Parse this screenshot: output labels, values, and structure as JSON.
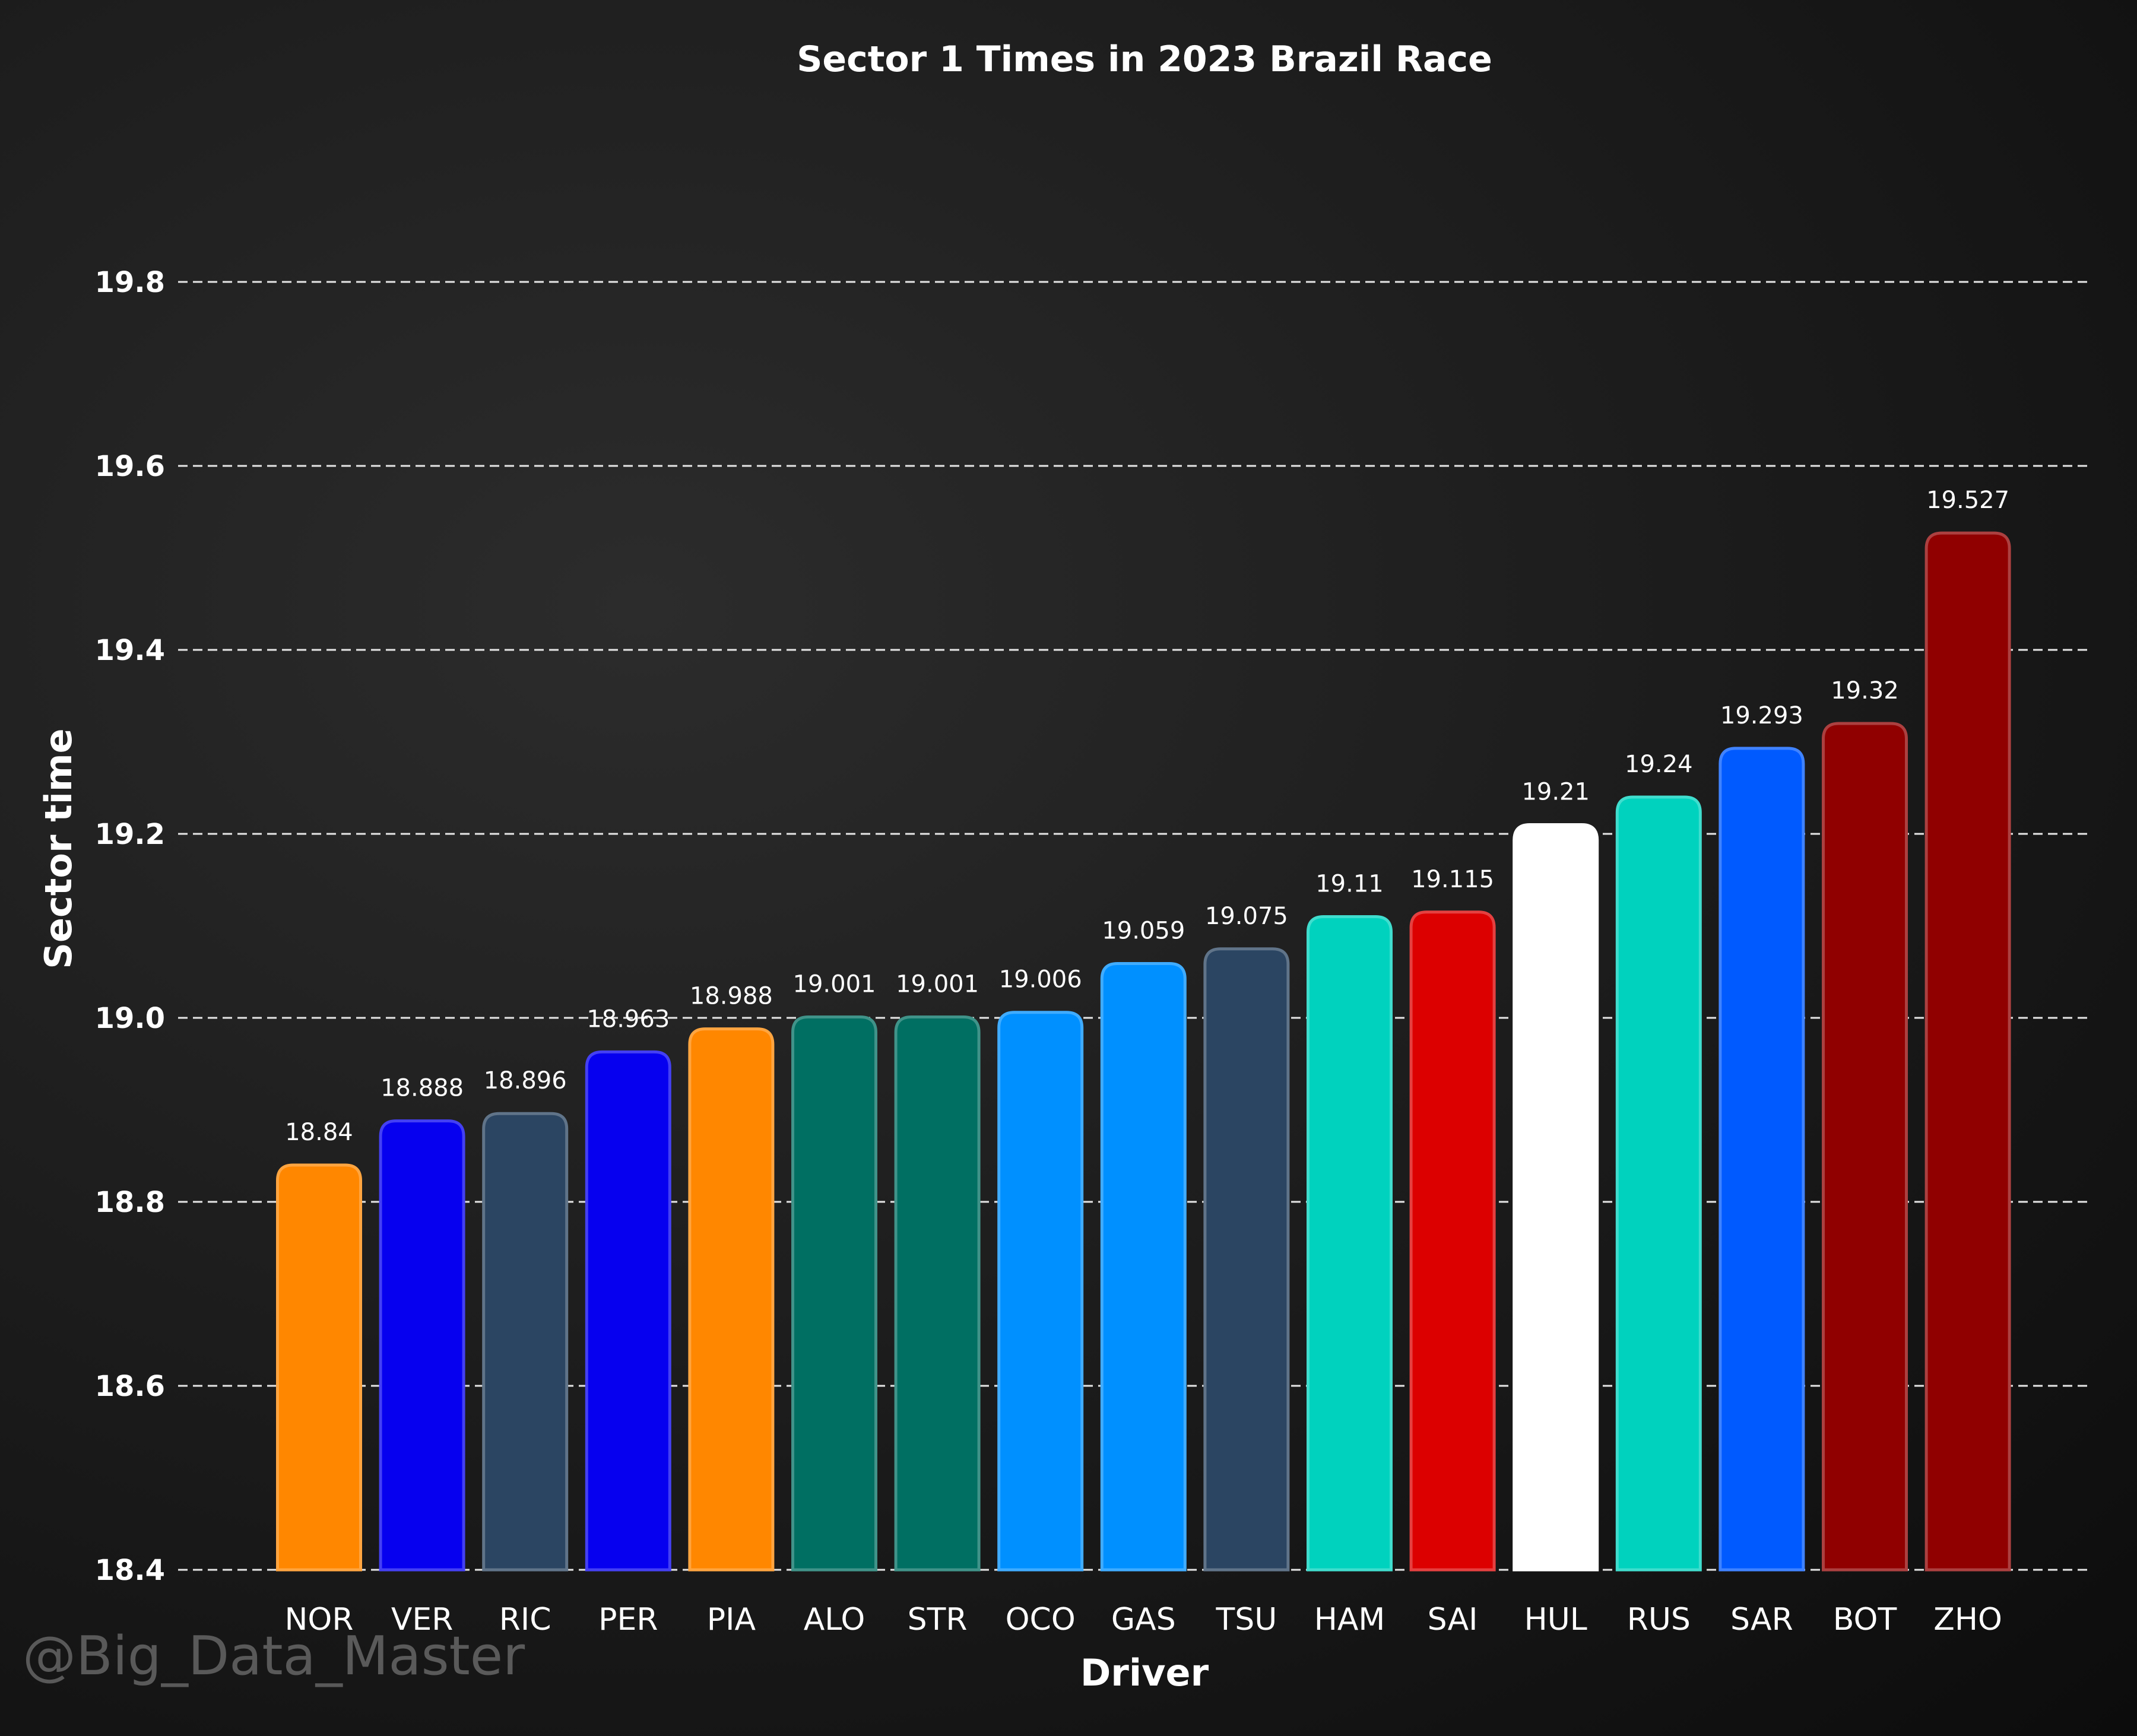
{
  "watermark": "@Big_Data_Master",
  "chart_data": {
    "type": "bar",
    "title": "Sector 1 Times in 2023 Brazil Race",
    "xlabel": "Driver",
    "ylabel": "Sector time",
    "ylim": [
      18.4,
      19.8
    ],
    "yticks": [
      "18.4",
      "18.6",
      "18.8",
      "19.0",
      "19.2",
      "19.4",
      "19.6",
      "19.8"
    ],
    "grid": true,
    "categories": [
      "NOR",
      "VER",
      "RIC",
      "PER",
      "PIA",
      "ALO",
      "STR",
      "OCO",
      "GAS",
      "TSU",
      "HAM",
      "SAI",
      "HUL",
      "RUS",
      "SAR",
      "BOT",
      "ZHO"
    ],
    "values": [
      18.84,
      18.888,
      18.896,
      18.963,
      18.988,
      19.001,
      19.001,
      19.006,
      19.059,
      19.075,
      19.11,
      19.115,
      19.21,
      19.24,
      19.293,
      19.32,
      19.527
    ],
    "value_labels": [
      "18.84",
      "18.888",
      "18.896",
      "18.963",
      "18.988",
      "19.001",
      "19.001",
      "19.006",
      "19.059",
      "19.075",
      "19.11",
      "19.115",
      "19.21",
      "19.24",
      "19.293",
      "19.32",
      "19.527"
    ],
    "colors": [
      "#FF8700",
      "#0600EF",
      "#2B4562",
      "#0600EF",
      "#FF8700",
      "#006F62",
      "#006F62",
      "#0090FF",
      "#0090FF",
      "#2B4562",
      "#00D2BE",
      "#DC0000",
      "#FFFFFF",
      "#00D2BE",
      "#005AFF",
      "#900000",
      "#900000"
    ]
  }
}
